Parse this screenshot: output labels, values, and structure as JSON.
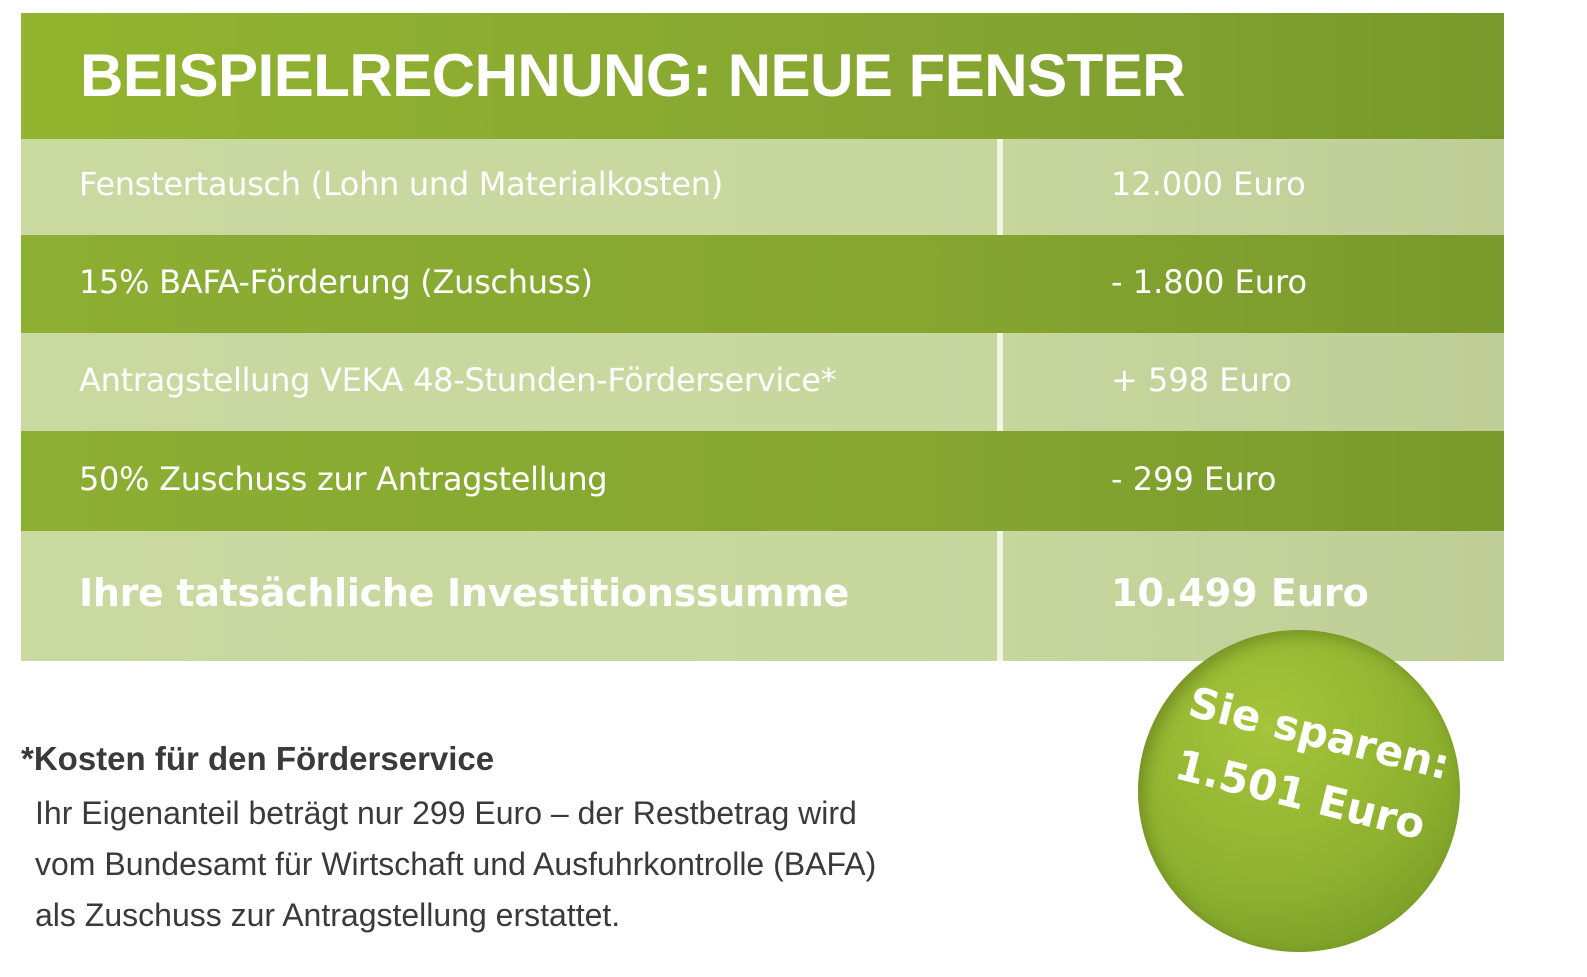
{
  "title": "BEISPIELRECHNUNG: NEUE FENSTER",
  "rows": [
    {
      "label": "Fenstertausch (Lohn und Materialkosten)",
      "value": "12.000 Euro"
    },
    {
      "label": "15% BAFA-Förderung (Zuschuss)",
      "value": "- 1.800 Euro"
    },
    {
      "label": "Antragstellung VEKA 48-Stunden-Förderservice*",
      "value": "+ 598 Euro"
    },
    {
      "label": "50% Zuschuss zur Antragstellung",
      "value": "- 299 Euro"
    },
    {
      "label": "Ihre tatsächliche Investitionssumme",
      "value": "10.499 Euro"
    }
  ],
  "footnote": {
    "title": "*Kosten für den Förderservice",
    "lines": [
      "Ihr Eigenanteil beträgt nur 299 Euro – der Restbetrag wird",
      "vom Bundesamt für Wirtschaft und Ausfuhrkontrolle (BAFA)",
      "als Zuschuss zur Antragstellung erstattet."
    ]
  },
  "badge": {
    "line1": "Sie sparen:",
    "line2": "1.501 Euro"
  },
  "colors": {
    "green_dark": "#86a630",
    "green_light": "#c7d79e",
    "text_dark": "#3a3a3a"
  }
}
